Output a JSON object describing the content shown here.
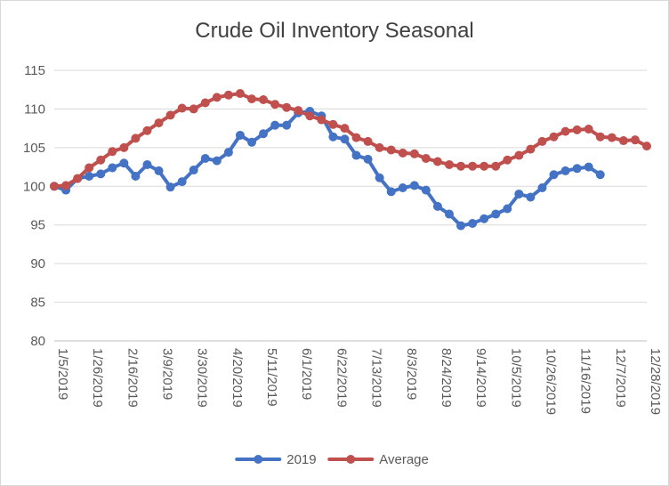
{
  "chart_data": {
    "type": "line",
    "title": "Crude Oil Inventory Seasonal",
    "xlabel": "",
    "ylabel": "",
    "ylim": [
      80,
      115
    ],
    "ytick_step": 5,
    "ytick_labels": [
      "80",
      "85",
      "90",
      "95",
      "100",
      "105",
      "110",
      "115"
    ],
    "grid": true,
    "legend": "bottom",
    "x_tick_labels": [
      "1/5/2019",
      "1/26/2019",
      "2/16/2019",
      "3/9/2019",
      "3/30/2019",
      "4/20/2019",
      "5/11/2019",
      "6/1/2019",
      "6/22/2019",
      "7/13/2019",
      "8/3/2019",
      "8/24/2019",
      "9/14/2019",
      "10/5/2019",
      "10/26/2019",
      "11/16/2019",
      "12/7/2019",
      "12/28/2019"
    ],
    "x": [
      "1/5/2019",
      "1/12/2019",
      "1/19/2019",
      "1/26/2019",
      "2/2/2019",
      "2/9/2019",
      "2/16/2019",
      "2/23/2019",
      "3/2/2019",
      "3/9/2019",
      "3/16/2019",
      "3/23/2019",
      "3/30/2019",
      "4/6/2019",
      "4/13/2019",
      "4/20/2019",
      "4/27/2019",
      "5/4/2019",
      "5/11/2019",
      "5/18/2019",
      "5/25/2019",
      "6/1/2019",
      "6/8/2019",
      "6/15/2019",
      "6/22/2019",
      "6/29/2019",
      "7/6/2019",
      "7/13/2019",
      "7/20/2019",
      "7/27/2019",
      "8/3/2019",
      "8/10/2019",
      "8/17/2019",
      "8/24/2019",
      "8/31/2019",
      "9/7/2019",
      "9/14/2019",
      "9/21/2019",
      "9/28/2019",
      "10/5/2019",
      "10/12/2019",
      "10/19/2019",
      "10/26/2019",
      "11/2/2019",
      "11/9/2019",
      "11/16/2019",
      "11/23/2019",
      "11/30/2019",
      "12/7/2019",
      "12/14/2019",
      "12/21/2019",
      "12/28/2019"
    ],
    "series": [
      {
        "name": "2019",
        "color": "#4472c4",
        "values": [
          100.0,
          99.5,
          101.0,
          101.3,
          101.6,
          102.4,
          103.0,
          101.3,
          102.8,
          102.0,
          99.9,
          100.6,
          102.1,
          103.6,
          103.3,
          104.4,
          106.6,
          105.7,
          106.8,
          107.9,
          107.9,
          109.5,
          109.7,
          109.1,
          106.4,
          106.1,
          104.0,
          103.5,
          101.1,
          99.3,
          99.8,
          100.1,
          99.5,
          97.4,
          96.4,
          94.9,
          95.2,
          95.8,
          96.4,
          97.1,
          99.0,
          98.6,
          99.8,
          101.5,
          102.0,
          102.3,
          102.5,
          101.5,
          null,
          null,
          null,
          null
        ]
      },
      {
        "name": "Average",
        "color": "#c0504d",
        "values": [
          100.0,
          100.1,
          101.0,
          102.4,
          103.4,
          104.5,
          105.0,
          106.2,
          107.2,
          108.2,
          109.2,
          110.1,
          110.0,
          110.8,
          111.5,
          111.8,
          112.0,
          111.3,
          111.2,
          110.6,
          110.2,
          109.8,
          109.1,
          108.6,
          108.0,
          107.5,
          106.3,
          105.8,
          105.0,
          104.7,
          104.3,
          104.2,
          103.6,
          103.2,
          102.8,
          102.6,
          102.6,
          102.6,
          102.6,
          103.4,
          104.0,
          104.8,
          105.8,
          106.4,
          107.1,
          107.3,
          107.4,
          106.4,
          106.3,
          105.9,
          106.0,
          105.2
        ]
      }
    ]
  }
}
